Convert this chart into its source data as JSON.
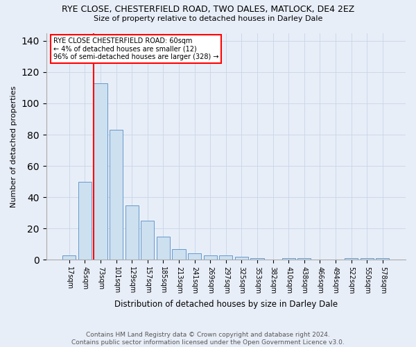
{
  "title": "RYE CLOSE, CHESTERFIELD ROAD, TWO DALES, MATLOCK, DE4 2EZ",
  "subtitle": "Size of property relative to detached houses in Darley Dale",
  "xlabel": "Distribution of detached houses by size in Darley Dale",
  "ylabel": "Number of detached properties",
  "categories": [
    "17sqm",
    "45sqm",
    "73sqm",
    "101sqm",
    "129sqm",
    "157sqm",
    "185sqm",
    "213sqm",
    "241sqm",
    "269sqm",
    "297sqm",
    "325sqm",
    "353sqm",
    "382sqm",
    "410sqm",
    "438sqm",
    "466sqm",
    "494sqm",
    "522sqm",
    "550sqm",
    "578sqm"
  ],
  "values": [
    3,
    50,
    113,
    83,
    35,
    25,
    15,
    7,
    4,
    3,
    3,
    2,
    1,
    0,
    1,
    1,
    0,
    0,
    1,
    1,
    1
  ],
  "bar_color": "#cce0f0",
  "bar_edge_color": "#6699cc",
  "vline_color": "red",
  "annotation_text": "RYE CLOSE CHESTERFIELD ROAD: 60sqm\n← 4% of detached houses are smaller (12)\n96% of semi-detached houses are larger (328) →",
  "annotation_box_color": "white",
  "annotation_box_edge": "red",
  "ylim": [
    0,
    145
  ],
  "yticks": [
    0,
    20,
    40,
    60,
    80,
    100,
    120,
    140
  ],
  "footer": "Contains HM Land Registry data © Crown copyright and database right 2024.\nContains public sector information licensed under the Open Government Licence v3.0.",
  "background_color": "#e8eef8",
  "grid_color": "#c8d4e8"
}
